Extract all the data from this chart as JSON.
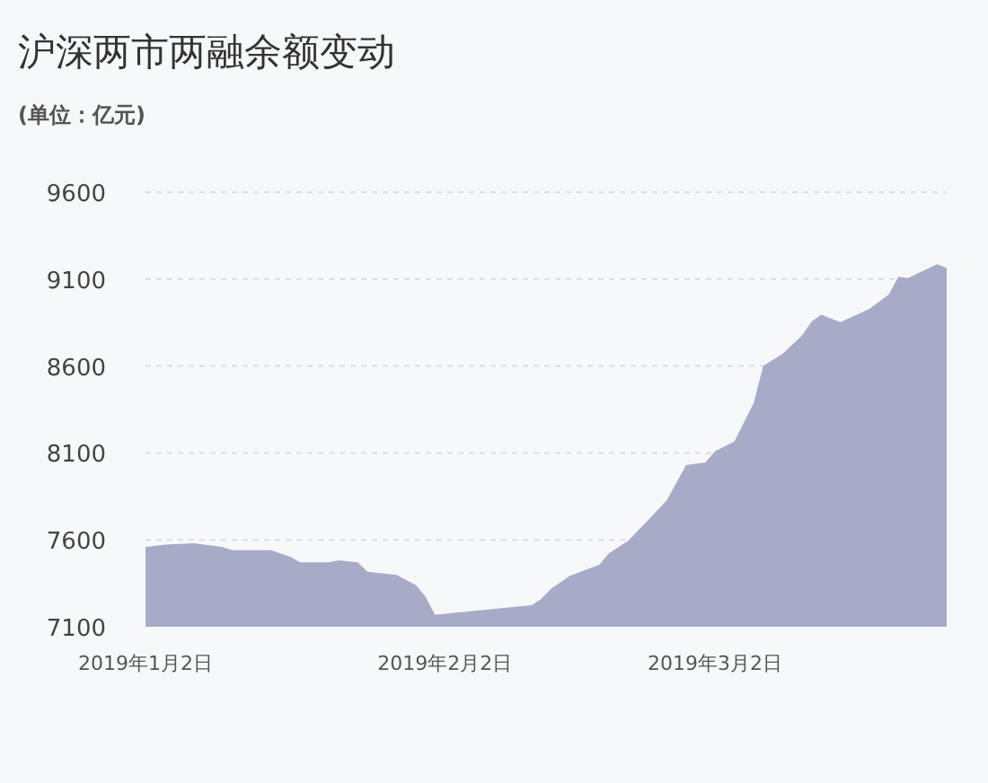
{
  "chart_data": {
    "type": "area",
    "title": "沪深两市两融余额变动",
    "subtitle": "(单位：亿元)",
    "x": [
      "2019-01-02",
      "2019-01-04",
      "2019-01-07",
      "2019-01-10",
      "2019-01-11",
      "2019-01-15",
      "2019-01-17",
      "2019-01-18",
      "2019-01-21",
      "2019-01-22",
      "2019-01-24",
      "2019-01-25",
      "2019-01-28",
      "2019-01-30",
      "2019-01-31",
      "2019-02-01",
      "2019-02-11",
      "2019-02-12",
      "2019-02-13",
      "2019-02-15",
      "2019-02-18",
      "2019-02-19",
      "2019-02-21",
      "2019-02-23",
      "2019-02-25",
      "2019-02-27",
      "2019-03-01",
      "2019-03-02",
      "2019-03-04",
      "2019-03-06",
      "2019-03-07",
      "2019-03-09",
      "2019-03-11",
      "2019-03-12",
      "2019-03-13",
      "2019-03-15",
      "2019-03-18",
      "2019-03-20",
      "2019-03-21",
      "2019-03-22",
      "2019-03-25",
      "2019-03-26"
    ],
    "values": [
      7558,
      7572,
      7580,
      7558,
      7540,
      7540,
      7503,
      7471,
      7471,
      7482,
      7471,
      7416,
      7398,
      7340,
      7274,
      7169,
      7224,
      7260,
      7318,
      7394,
      7456,
      7522,
      7594,
      7710,
      7827,
      8030,
      8045,
      8110,
      8165,
      8386,
      8601,
      8670,
      8775,
      8855,
      8895,
      8852,
      8928,
      9011,
      9113,
      9106,
      9186,
      9164
    ],
    "color": "#a8abc8",
    "xlim": [
      "2019-01-02",
      "2019-03-26"
    ],
    "xticks": [
      {
        "value": "2019-01-02",
        "label": "2019年1月2日"
      },
      {
        "value": "2019-02-02",
        "label": "2019年2月2日"
      },
      {
        "value": "2019-03-02",
        "label": "2019年3月2日"
      }
    ],
    "ylim": [
      7100,
      9600
    ],
    "yticks": [
      7100,
      7600,
      8100,
      8600,
      9100,
      9600
    ],
    "grid": "y"
  }
}
